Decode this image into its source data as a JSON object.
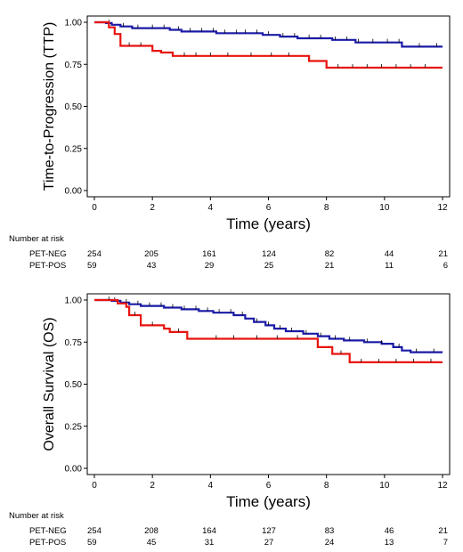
{
  "chart_data": [
    {
      "type": "line",
      "subtype": "kaplan-meier",
      "title": "",
      "xlabel": "Time (years)",
      "ylabel": "Time-to-Progression (TTP)",
      "xlim": [
        0,
        12
      ],
      "ylim": [
        0,
        1
      ],
      "xticks": [
        "0",
        "2",
        "4",
        "6",
        "8",
        "10",
        "12"
      ],
      "yticks": [
        "0.00",
        "0.25",
        "0.50",
        "0.75",
        "1.00"
      ],
      "grid": false,
      "series": [
        {
          "name": "PET-NEG",
          "color": "#1a1aa6",
          "points": [
            [
              0,
              1.0
            ],
            [
              0.4,
              0.995
            ],
            [
              0.6,
              0.985
            ],
            [
              0.9,
              0.975
            ],
            [
              1.3,
              0.965
            ],
            [
              2.6,
              0.955
            ],
            [
              3.0,
              0.945
            ],
            [
              4.2,
              0.935
            ],
            [
              5.8,
              0.925
            ],
            [
              6.4,
              0.915
            ],
            [
              7.0,
              0.905
            ],
            [
              8.2,
              0.895
            ],
            [
              9.0,
              0.88
            ],
            [
              10.6,
              0.855
            ],
            [
              12.0,
              0.855
            ]
          ],
          "censor_marks": [
            0.5,
            1.0,
            1.5,
            2.0,
            2.4,
            2.9,
            3.3,
            3.7,
            4.1,
            4.5,
            4.9,
            5.2,
            5.6,
            6.0,
            6.5,
            6.9,
            7.4,
            7.8,
            8.3,
            8.7,
            9.1,
            9.6,
            10.1,
            10.5,
            11.2,
            11.8
          ]
        },
        {
          "name": "PET-POS",
          "color": "#e8140f",
          "points": [
            [
              0,
              1.0
            ],
            [
              0.5,
              0.97
            ],
            [
              0.7,
              0.93
            ],
            [
              0.9,
              0.86
            ],
            [
              2.0,
              0.83
            ],
            [
              2.3,
              0.82
            ],
            [
              2.7,
              0.8
            ],
            [
              7.4,
              0.77
            ],
            [
              8.0,
              0.73
            ],
            [
              12.0,
              0.73
            ]
          ],
          "censor_marks": [
            1.2,
            1.6,
            3.1,
            3.5,
            4.0,
            4.6,
            5.4,
            6.1,
            6.7,
            8.4,
            8.9,
            9.4,
            9.9,
            10.4,
            10.9,
            11.4
          ]
        }
      ],
      "risk_table": {
        "title": "Number at risk",
        "times": [
          0,
          2,
          4,
          6,
          8,
          10,
          12
        ],
        "rows": [
          {
            "label": "PET-NEG",
            "values": [
              "254",
              "205",
              "161",
              "124",
              "82",
              "44",
              "21"
            ]
          },
          {
            "label": "PET-POS",
            "values": [
              "59",
              "43",
              "29",
              "25",
              "21",
              "11",
              "6"
            ]
          }
        ]
      }
    },
    {
      "type": "line",
      "subtype": "kaplan-meier",
      "title": "",
      "xlabel": "Time (years)",
      "ylabel": "Overall Survival (OS)",
      "xlim": [
        0,
        12
      ],
      "ylim": [
        0,
        1
      ],
      "xticks": [
        "0",
        "2",
        "4",
        "6",
        "8",
        "10",
        "12"
      ],
      "yticks": [
        "0.00",
        "0.25",
        "0.50",
        "0.75",
        "1.00"
      ],
      "grid": false,
      "series": [
        {
          "name": "PET-NEG",
          "color": "#1a1aa6",
          "points": [
            [
              0,
              1.0
            ],
            [
              0.6,
              0.995
            ],
            [
              0.9,
              0.985
            ],
            [
              1.2,
              0.975
            ],
            [
              1.6,
              0.965
            ],
            [
              2.4,
              0.955
            ],
            [
              3.0,
              0.945
            ],
            [
              3.6,
              0.935
            ],
            [
              4.1,
              0.925
            ],
            [
              4.8,
              0.91
            ],
            [
              5.2,
              0.89
            ],
            [
              5.5,
              0.87
            ],
            [
              5.9,
              0.85
            ],
            [
              6.2,
              0.83
            ],
            [
              6.6,
              0.815
            ],
            [
              7.2,
              0.8
            ],
            [
              7.7,
              0.785
            ],
            [
              8.1,
              0.77
            ],
            [
              8.6,
              0.76
            ],
            [
              9.3,
              0.75
            ],
            [
              9.9,
              0.74
            ],
            [
              10.3,
              0.72
            ],
            [
              10.6,
              0.7
            ],
            [
              10.9,
              0.69
            ],
            [
              12.0,
              0.69
            ]
          ],
          "censor_marks": [
            0.7,
            1.1,
            1.5,
            1.9,
            2.3,
            2.7,
            3.1,
            3.5,
            3.9,
            4.3,
            4.7,
            5.1,
            5.6,
            6.0,
            6.4,
            6.8,
            7.3,
            7.8,
            8.3,
            8.8,
            9.4,
            9.9,
            10.5,
            11.1,
            11.7
          ]
        },
        {
          "name": "PET-POS",
          "color": "#e8140f",
          "points": [
            [
              0,
              1.0
            ],
            [
              0.8,
              0.98
            ],
            [
              1.1,
              0.96
            ],
            [
              1.2,
              0.91
            ],
            [
              1.6,
              0.85
            ],
            [
              2.4,
              0.83
            ],
            [
              2.6,
              0.81
            ],
            [
              3.2,
              0.77
            ],
            [
              7.7,
              0.72
            ],
            [
              8.2,
              0.68
            ],
            [
              8.8,
              0.63
            ],
            [
              12.0,
              0.63
            ]
          ],
          "censor_marks": [
            0.5,
            1.4,
            2.0,
            2.9,
            4.2,
            4.8,
            5.6,
            6.3,
            7.0,
            8.5,
            9.2,
            9.8,
            10.4,
            11.0,
            11.6
          ]
        }
      ],
      "risk_table": {
        "title": "Number at risk",
        "times": [
          0,
          2,
          4,
          6,
          8,
          10,
          12
        ],
        "rows": [
          {
            "label": "PET-NEG",
            "values": [
              "254",
              "208",
              "164",
              "127",
              "83",
              "46",
              "21"
            ]
          },
          {
            "label": "PET-POS",
            "values": [
              "59",
              "45",
              "31",
              "27",
              "24",
              "13",
              "7"
            ]
          }
        ]
      }
    }
  ]
}
